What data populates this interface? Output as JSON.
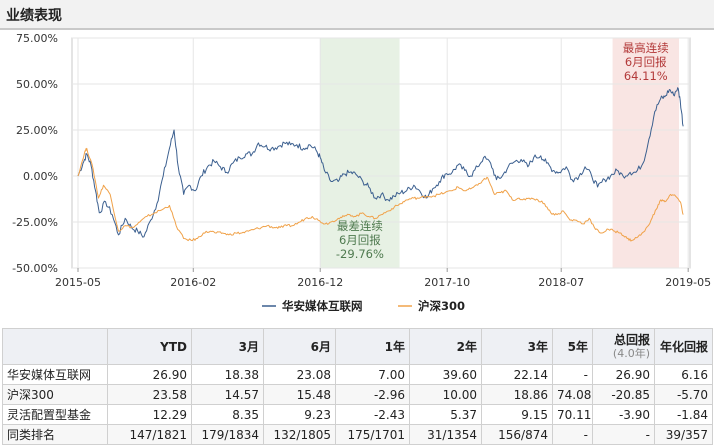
{
  "header": {
    "title": "业绩表现"
  },
  "chart_data": {
    "type": "line",
    "ylim": [
      -50,
      75
    ],
    "yticks": [
      "75.00%",
      "50.00%",
      "25.00%",
      "0.00%",
      "-25.00%",
      "-50.00%"
    ],
    "ytick_values": [
      75,
      50,
      25,
      0,
      -25,
      -50
    ],
    "xlim": [
      "2015-05",
      "2019-05"
    ],
    "xticks": [
      "2015-05",
      "2016-02",
      "2016-12",
      "2017-10",
      "2018-07",
      "2019-05"
    ],
    "grid": true,
    "legend_position": "bottom",
    "colors": {
      "fund": "#3b5f8f",
      "index": "#f0a24a",
      "worst_band": "#e7f1e4",
      "best_band": "#f9e5e3",
      "best_text": "#b33a3a",
      "worst_text": "#4f7a4f"
    },
    "highlights": [
      {
        "kind": "worst",
        "start": "2016-12",
        "end": "2017-06",
        "label": [
          "最差连续",
          "6月回报",
          "-29.76%"
        ]
      },
      {
        "kind": "best",
        "start": "2018-11",
        "end": "2019-04",
        "label": [
          "最高连续",
          "6月回报",
          "64.11%"
        ]
      }
    ],
    "series": [
      {
        "name": "华安媒体互联网",
        "points": [
          [
            "2015-05-20",
            0
          ],
          [
            "2015-06-01",
            7
          ],
          [
            "2015-06-10",
            12
          ],
          [
            "2015-06-20",
            6
          ],
          [
            "2015-07-01",
            -8
          ],
          [
            "2015-07-10",
            -20
          ],
          [
            "2015-07-25",
            -14
          ],
          [
            "2015-08-10",
            -21
          ],
          [
            "2015-08-25",
            -32
          ],
          [
            "2015-09-10",
            -23
          ],
          [
            "2015-09-25",
            -28
          ],
          [
            "2015-10-10",
            -30
          ],
          [
            "2015-10-25",
            -33
          ],
          [
            "2015-11-10",
            -24
          ],
          [
            "2015-11-25",
            -15
          ],
          [
            "2015-12-10",
            0
          ],
          [
            "2015-12-25",
            15
          ],
          [
            "2016-01-05",
            25
          ],
          [
            "2016-01-15",
            5
          ],
          [
            "2016-01-28",
            -10
          ],
          [
            "2016-02-10",
            -5
          ],
          [
            "2016-02-25",
            -8
          ],
          [
            "2016-03-10",
            0
          ],
          [
            "2016-03-25",
            5
          ],
          [
            "2016-04-10",
            8
          ],
          [
            "2016-04-25",
            5
          ],
          [
            "2016-05-10",
            2
          ],
          [
            "2016-05-25",
            7
          ],
          [
            "2016-06-10",
            10
          ],
          [
            "2016-06-25",
            12
          ],
          [
            "2016-07-10",
            12
          ],
          [
            "2016-07-25",
            18
          ],
          [
            "2016-08-10",
            16
          ],
          [
            "2016-08-25",
            15
          ],
          [
            "2016-09-10",
            16
          ],
          [
            "2016-09-25",
            18
          ],
          [
            "2016-10-10",
            17
          ],
          [
            "2016-10-25",
            17
          ],
          [
            "2016-11-10",
            15
          ],
          [
            "2016-11-25",
            17
          ],
          [
            "2016-12-10",
            14
          ],
          [
            "2016-12-20",
            10
          ],
          [
            "2016-12-30",
            3
          ],
          [
            "2017-01-15",
            -3
          ],
          [
            "2017-02-01",
            -3
          ],
          [
            "2017-02-15",
            1
          ],
          [
            "2017-03-01",
            2
          ],
          [
            "2017-03-15",
            1
          ],
          [
            "2017-04-01",
            -3
          ],
          [
            "2017-04-15",
            -6
          ],
          [
            "2017-05-01",
            -12
          ],
          [
            "2017-05-15",
            -10
          ],
          [
            "2017-06-01",
            -13
          ],
          [
            "2017-06-15",
            -11
          ],
          [
            "2017-07-01",
            -9
          ],
          [
            "2017-07-15",
            -8
          ],
          [
            "2017-08-01",
            -5
          ],
          [
            "2017-08-15",
            -8
          ],
          [
            "2017-09-01",
            -12
          ],
          [
            "2017-09-15",
            -7
          ],
          [
            "2017-10-01",
            -3
          ],
          [
            "2017-10-15",
            1
          ],
          [
            "2017-11-01",
            2
          ],
          [
            "2017-11-15",
            6
          ],
          [
            "2017-12-01",
            3
          ],
          [
            "2017-12-15",
            0
          ],
          [
            "2018-01-01",
            5
          ],
          [
            "2018-01-15",
            10
          ],
          [
            "2018-02-01",
            7
          ],
          [
            "2018-02-15",
            -2
          ],
          [
            "2018-03-01",
            0
          ],
          [
            "2018-03-15",
            5
          ],
          [
            "2018-04-01",
            8
          ],
          [
            "2018-04-15",
            9
          ],
          [
            "2018-05-01",
            5
          ],
          [
            "2018-05-15",
            10
          ],
          [
            "2018-06-01",
            11
          ],
          [
            "2018-06-15",
            7
          ],
          [
            "2018-07-01",
            3
          ],
          [
            "2018-07-15",
            2
          ],
          [
            "2018-08-01",
            5
          ],
          [
            "2018-08-15",
            -2
          ],
          [
            "2018-09-01",
            0
          ],
          [
            "2018-09-15",
            5
          ],
          [
            "2018-10-01",
            0
          ],
          [
            "2018-10-15",
            -6
          ],
          [
            "2018-11-01",
            -2
          ],
          [
            "2018-11-15",
            0
          ],
          [
            "2018-12-01",
            3
          ],
          [
            "2018-12-15",
            0
          ],
          [
            "2019-01-01",
            2
          ],
          [
            "2019-01-15",
            2
          ],
          [
            "2019-02-01",
            7
          ],
          [
            "2019-02-15",
            20
          ],
          [
            "2019-03-01",
            35
          ],
          [
            "2019-03-15",
            42
          ],
          [
            "2019-03-25",
            43
          ],
          [
            "2019-04-05",
            47
          ],
          [
            "2019-04-15",
            44
          ],
          [
            "2019-04-25",
            48
          ],
          [
            "2019-05-01",
            41
          ],
          [
            "2019-05-08",
            27
          ]
        ]
      },
      {
        "name": "沪深300",
        "points": [
          [
            "2015-05-20",
            0
          ],
          [
            "2015-06-05",
            13
          ],
          [
            "2015-06-10",
            15
          ],
          [
            "2015-06-25",
            4
          ],
          [
            "2015-07-08",
            -12
          ],
          [
            "2015-07-20",
            -5
          ],
          [
            "2015-08-05",
            -10
          ],
          [
            "2015-08-25",
            -30
          ],
          [
            "2015-09-10",
            -27
          ],
          [
            "2015-09-30",
            -28
          ],
          [
            "2015-10-15",
            -25
          ],
          [
            "2015-11-01",
            -22
          ],
          [
            "2015-11-20",
            -20
          ],
          [
            "2015-12-10",
            -18
          ],
          [
            "2015-12-25",
            -16
          ],
          [
            "2016-01-10",
            -27
          ],
          [
            "2016-01-28",
            -34
          ],
          [
            "2016-02-15",
            -35
          ],
          [
            "2016-03-01",
            -34
          ],
          [
            "2016-03-15",
            -31
          ],
          [
            "2016-04-01",
            -30
          ],
          [
            "2016-04-15",
            -31
          ],
          [
            "2016-05-01",
            -31
          ],
          [
            "2016-05-15",
            -32
          ],
          [
            "2016-06-01",
            -31
          ],
          [
            "2016-06-15",
            -31
          ],
          [
            "2016-07-01",
            -30
          ],
          [
            "2016-07-15",
            -29
          ],
          [
            "2016-08-01",
            -28
          ],
          [
            "2016-08-15",
            -27
          ],
          [
            "2016-09-01",
            -28
          ],
          [
            "2016-09-15",
            -28
          ],
          [
            "2016-10-01",
            -27
          ],
          [
            "2016-10-15",
            -27
          ],
          [
            "2016-11-01",
            -25
          ],
          [
            "2016-11-15",
            -23
          ],
          [
            "2016-12-01",
            -22
          ],
          [
            "2016-12-15",
            -24
          ],
          [
            "2017-01-01",
            -26
          ],
          [
            "2017-01-15",
            -25
          ],
          [
            "2017-02-01",
            -23
          ],
          [
            "2017-02-15",
            -22
          ],
          [
            "2017-03-01",
            -21
          ],
          [
            "2017-03-15",
            -22
          ],
          [
            "2017-04-01",
            -20
          ],
          [
            "2017-04-15",
            -22
          ],
          [
            "2017-05-01",
            -23
          ],
          [
            "2017-05-15",
            -21
          ],
          [
            "2017-06-01",
            -19
          ],
          [
            "2017-06-15",
            -17
          ],
          [
            "2017-07-01",
            -15
          ],
          [
            "2017-07-15",
            -13
          ],
          [
            "2017-08-01",
            -12
          ],
          [
            "2017-08-15",
            -12
          ],
          [
            "2017-09-01",
            -11
          ],
          [
            "2017-09-15",
            -11
          ],
          [
            "2017-10-01",
            -10
          ],
          [
            "2017-10-15",
            -9
          ],
          [
            "2017-11-01",
            -8
          ],
          [
            "2017-11-15",
            -6
          ],
          [
            "2017-12-01",
            -8
          ],
          [
            "2017-12-15",
            -7
          ],
          [
            "2018-01-01",
            -5
          ],
          [
            "2018-01-15",
            -2
          ],
          [
            "2018-01-25",
            -1
          ],
          [
            "2018-02-10",
            -10
          ],
          [
            "2018-02-25",
            -9
          ],
          [
            "2018-03-10",
            -8
          ],
          [
            "2018-03-25",
            -13
          ],
          [
            "2018-04-10",
            -12
          ],
          [
            "2018-04-25",
            -13
          ],
          [
            "2018-05-10",
            -12
          ],
          [
            "2018-05-25",
            -13
          ],
          [
            "2018-06-10",
            -15
          ],
          [
            "2018-06-25",
            -20
          ],
          [
            "2018-07-10",
            -21
          ],
          [
            "2018-07-25",
            -19
          ],
          [
            "2018-08-10",
            -24
          ],
          [
            "2018-08-25",
            -24
          ],
          [
            "2018-09-10",
            -26
          ],
          [
            "2018-09-25",
            -23
          ],
          [
            "2018-10-10",
            -29
          ],
          [
            "2018-10-25",
            -31
          ],
          [
            "2018-11-10",
            -29
          ],
          [
            "2018-11-25",
            -30
          ],
          [
            "2018-12-10",
            -31
          ],
          [
            "2018-12-25",
            -34
          ],
          [
            "2019-01-05",
            -35
          ],
          [
            "2019-01-20",
            -33
          ],
          [
            "2019-02-05",
            -30
          ],
          [
            "2019-02-20",
            -24
          ],
          [
            "2019-03-05",
            -18
          ],
          [
            "2019-03-15",
            -13
          ],
          [
            "2019-03-25",
            -14
          ],
          [
            "2019-04-08",
            -10
          ],
          [
            "2019-04-20",
            -11
          ],
          [
            "2019-05-01",
            -14
          ],
          [
            "2019-05-08",
            -21
          ]
        ]
      }
    ]
  },
  "table": {
    "headers": [
      {
        "label": "",
        "sub": ""
      },
      {
        "label": "YTD",
        "sub": ""
      },
      {
        "label": "3月",
        "sub": ""
      },
      {
        "label": "6月",
        "sub": ""
      },
      {
        "label": "1年",
        "sub": ""
      },
      {
        "label": "2年",
        "sub": ""
      },
      {
        "label": "3年",
        "sub": ""
      },
      {
        "label": "5年",
        "sub": ""
      },
      {
        "label": "总回报",
        "sub": "(4.0年)"
      },
      {
        "label": "年化回报",
        "sub": ""
      }
    ],
    "rows": [
      [
        "华安媒体互联网",
        "26.90",
        "18.38",
        "23.08",
        "7.00",
        "39.60",
        "22.14",
        "-",
        "26.90",
        "6.16"
      ],
      [
        "沪深300",
        "23.58",
        "14.57",
        "15.48",
        "-2.96",
        "10.00",
        "18.86",
        "74.08",
        "-20.85",
        "-5.70"
      ],
      [
        "灵活配置型基金",
        "12.29",
        "8.35",
        "9.23",
        "-2.43",
        "5.37",
        "9.15",
        "70.11",
        "-3.90",
        "-1.84"
      ],
      [
        "同类排名",
        "147/1821",
        "179/1834",
        "132/1805",
        "175/1701",
        "31/1354",
        "156/874",
        "-",
        "-",
        "39/357"
      ]
    ]
  }
}
